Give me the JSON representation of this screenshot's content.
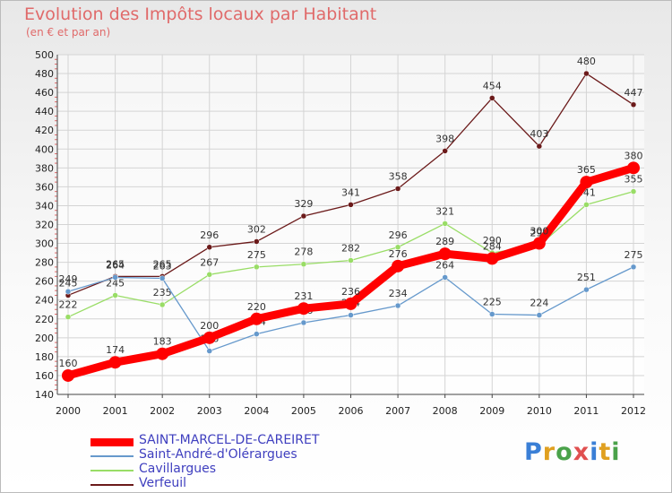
{
  "chart_data": {
    "type": "line",
    "title": "Evolution des Impôts locaux par Habitant",
    "subtitle": "(en € et par an)",
    "xlabel": "",
    "ylabel": "",
    "ylim": [
      140,
      500
    ],
    "ytick_step": 20,
    "grid": true,
    "legend_position": "bottom-left",
    "categories": [
      "2000",
      "2001",
      "2002",
      "2003",
      "2004",
      "2005",
      "2006",
      "2007",
      "2008",
      "2009",
      "2010",
      "2011",
      "2012"
    ],
    "series": [
      {
        "name": "Verfeuil",
        "color": "#6b1a1a",
        "values": [
          245,
          265,
          265,
          296,
          302,
          329,
          341,
          358,
          398,
          454,
          403,
          480,
          447
        ]
      },
      {
        "name": "Cavillargues",
        "color": "#99dd66",
        "values": [
          222,
          245,
          235,
          267,
          275,
          278,
          282,
          296,
          321,
          290,
          298,
          341,
          355
        ]
      },
      {
        "name": "Saint-André-d'Olérargues",
        "color": "#6699cc",
        "values": [
          249,
          264,
          263,
          186,
          204,
          216,
          224,
          234,
          264,
          225,
          224,
          251,
          275
        ]
      },
      {
        "name": "SAINT-MARCEL-DE-CAREIRET",
        "color": "#ff0000",
        "values": [
          160,
          174,
          183,
          200,
          220,
          231,
          236,
          276,
          289,
          284,
          300,
          365,
          380
        ]
      }
    ],
    "legend_order": [
      "SAINT-MARCEL-DE-CAREIRET",
      "Saint-André-d'Olérargues",
      "Cavillargues",
      "Verfeuil"
    ]
  },
  "brand": {
    "letters": [
      "P",
      "r",
      "o",
      "x",
      "i",
      "t",
      "i"
    ],
    "colors": [
      "#3a7fd6",
      "#e0a020",
      "#4aa24a",
      "#e05050",
      "#3a7fd6",
      "#e0a020",
      "#4aa24a"
    ]
  }
}
